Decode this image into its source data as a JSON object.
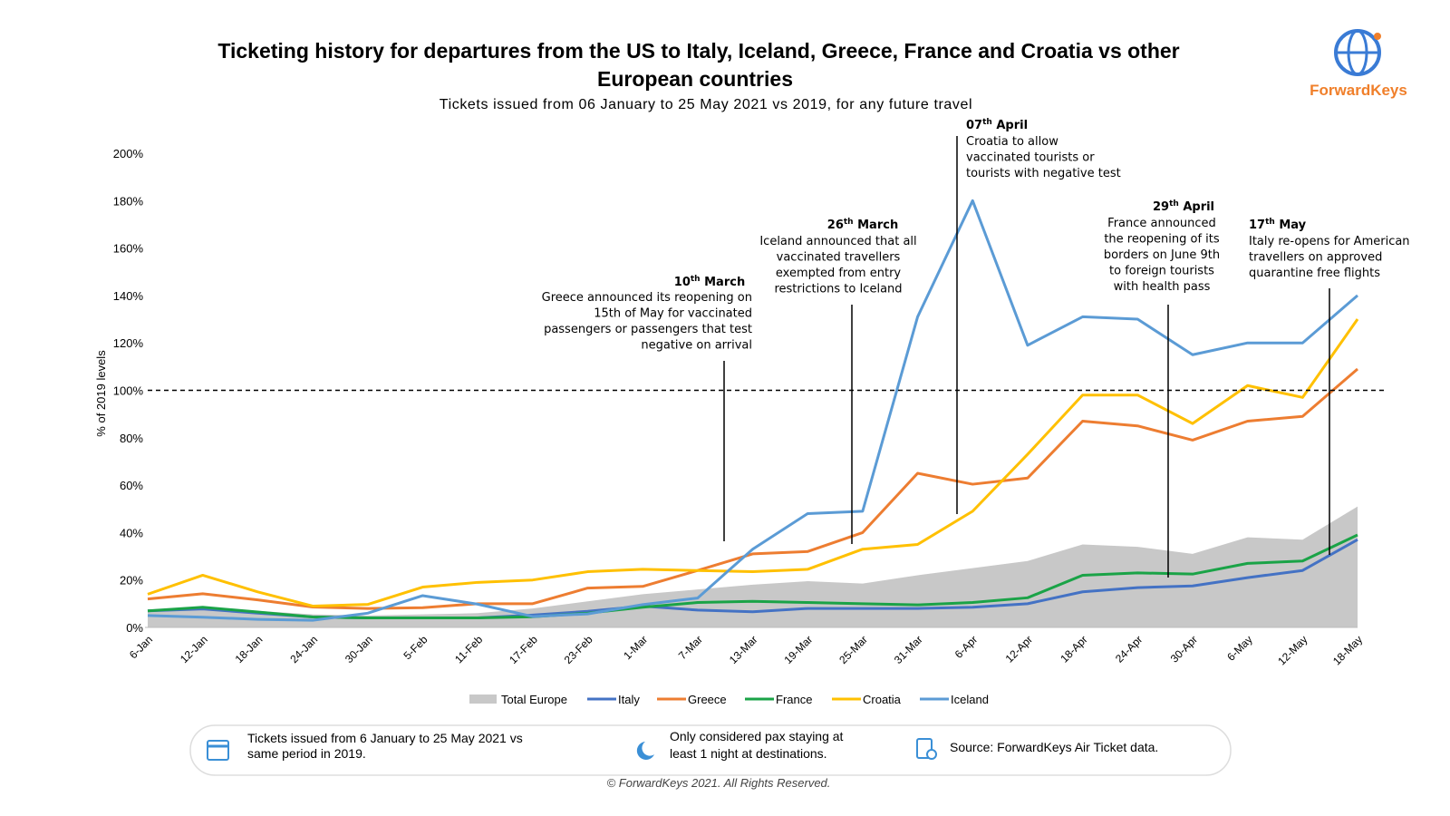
{
  "chart_data": {
    "type": "line",
    "title": [
      "Ticketing history for  departures from the US to Italy, Iceland, Greece, France and Croatia vs other",
      "European countries"
    ],
    "subtitle": "Tickets issued from 06 January to 25 May 2021 vs 2019, for any future travel",
    "y_label": "% of 2019 levels",
    "logo": "ForwardKeys",
    "categories": [
      "6-Jan",
      "12-Jan",
      "18-Jan",
      "24-Jan",
      "30-Jan",
      "5-Feb",
      "11-Feb",
      "17-Feb",
      "23-Feb",
      "1-Mar",
      "7-Mar",
      "13-Mar",
      "19-Mar",
      "25-Mar",
      "31-Mar",
      "6-Apr",
      "12-Apr",
      "18-Apr",
      "24-Apr",
      "30-Apr",
      "6-May",
      "12-May",
      "18-May"
    ],
    "series": [
      {
        "name": "Total Europe",
        "kind": "area",
        "color": "#c8c8c8",
        "values": [
          7,
          8.5,
          7,
          5.5,
          5,
          5.5,
          6,
          8,
          11,
          14,
          16,
          18,
          19.5,
          18.5,
          22,
          25,
          28,
          35,
          34,
          31,
          38,
          37,
          51
        ]
      },
      {
        "name": "Italy",
        "color": "#4472c4",
        "values": [
          7,
          7.8,
          6,
          4.4,
          4,
          4,
          4,
          5.2,
          6.8,
          9,
          7.3,
          6.6,
          8,
          8,
          8,
          8.5,
          10,
          15,
          16.8,
          17.5,
          21,
          24,
          37
        ]
      },
      {
        "name": "Greece",
        "color": "#ed7d31",
        "values": [
          12,
          14.2,
          11.6,
          8.6,
          8,
          8.3,
          10,
          10,
          16.6,
          17.3,
          24,
          31,
          32,
          40,
          65,
          60.4,
          63,
          87,
          85,
          79,
          87,
          89,
          109
        ]
      },
      {
        "name": "France",
        "color": "#1aa347",
        "values": [
          7,
          8.5,
          6.5,
          4.4,
          4,
          4,
          4,
          4.5,
          6,
          8.5,
          10.5,
          11,
          10.5,
          10,
          9.5,
          10.5,
          12.5,
          22,
          23,
          22.5,
          27,
          28,
          39
        ]
      },
      {
        "name": "Croatia",
        "color": "#ffc000",
        "values": [
          14,
          22,
          15,
          9,
          9.7,
          17,
          19,
          20,
          23.5,
          24.5,
          24,
          23.5,
          24.5,
          33,
          35,
          49,
          73,
          98,
          98,
          86,
          102,
          97,
          130
        ]
      },
      {
        "name": "Iceland",
        "color": "#5b9bd5",
        "values": [
          5,
          4.3,
          3.4,
          3,
          6,
          13.4,
          9.8,
          4.6,
          5.7,
          9.6,
          12.4,
          33,
          48,
          49,
          131,
          180,
          119,
          131,
          130,
          115,
          120,
          120,
          140
        ]
      }
    ],
    "ylim": [
      0,
      200
    ],
    "yticks": [
      {
        "value": 0,
        "label": "0%"
      },
      {
        "value": 20,
        "label": "20%"
      },
      {
        "value": 40,
        "label": "40%"
      },
      {
        "value": 60,
        "label": "60%"
      },
      {
        "value": 80,
        "label": "80%"
      },
      {
        "value": 100,
        "label": "100%"
      },
      {
        "value": 120,
        "label": "120%"
      },
      {
        "value": 140,
        "label": "140%"
      },
      {
        "value": 160,
        "label": "160%"
      },
      {
        "value": 180,
        "label": "180%"
      },
      {
        "value": 200,
        "label": "200%"
      }
    ],
    "reference_line": 100,
    "annotations": [
      {
        "num": "10",
        "sup": "th",
        "month": " March",
        "lines": [
          "Greece announced its reopening on",
          "15th of May for vaccinated",
          "passengers or passengers that test",
          "negative on arrival"
        ]
      },
      {
        "num": "26",
        "sup": "th",
        "month": " March",
        "lines": [
          "Iceland announced that all",
          "vaccinated travellers",
          "exempted from entry",
          "restrictions to Iceland"
        ]
      },
      {
        "num": "07",
        "sup": "th",
        "month": " April",
        "lines": [
          "Croatia to allow",
          "vaccinated tourists or",
          "tourists with negative test"
        ]
      },
      {
        "num": "29",
        "sup": "th",
        "month": " April",
        "lines": [
          "France announced",
          "the reopening of its",
          "borders on June 9th",
          "to foreign tourists",
          "with health pass"
        ]
      },
      {
        "num": "17",
        "sup": "th",
        "month": " May",
        "lines": [
          "Italy re-opens for American",
          "travellers on approved",
          "quarantine free flights"
        ]
      }
    ],
    "footer": [
      "Tickets issued from 6 January to 25 May 2021 vs",
      "same period in 2019.",
      "Only considered pax staying at",
      "least 1 night at destinations.",
      "Source: ForwardKeys Air Ticket data."
    ],
    "copyright": "© ForwardKeys 2021. All Rights Reserved."
  }
}
